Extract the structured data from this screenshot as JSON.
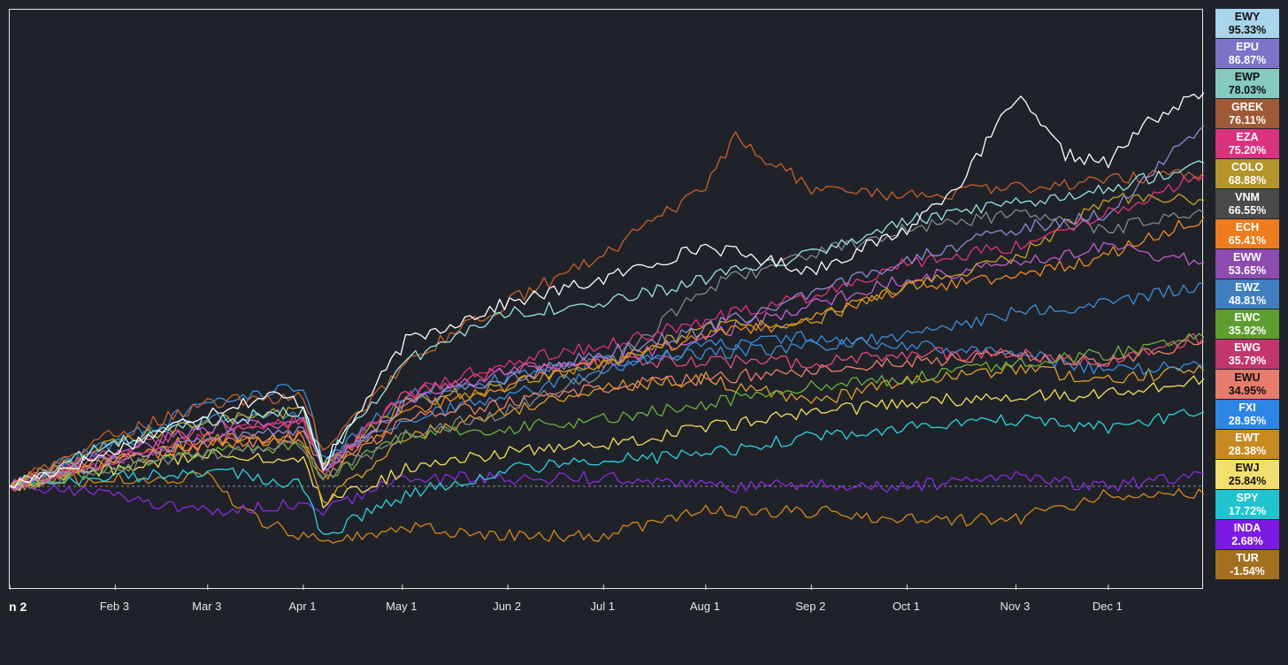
{
  "chart_data": {
    "type": "line",
    "title": "",
    "xlabel": "",
    "ylabel": "",
    "x_ticks": [
      "n 2",
      "Feb 3",
      "Mar 3",
      "Apr 1",
      "May 1",
      "Jun 2",
      "Jul 1",
      "Aug 1",
      "Sep 2",
      "Oct 1",
      "Nov 3",
      "Dec 1"
    ],
    "x_tick_days": [
      0,
      32,
      60,
      89,
      119,
      151,
      180,
      211,
      243,
      272,
      305,
      333
    ],
    "x_range_days": [
      0,
      362
    ],
    "ylim": [
      -25,
      115
    ],
    "grid": false,
    "legend_placement": "right",
    "series": [
      {
        "name": "EWY",
        "final": "95.33%",
        "color": "#ffffff",
        "box_color": "#a8d4ec",
        "label_color": "#111111",
        "points": [
          [
            0,
            0
          ],
          [
            30,
            8
          ],
          [
            60,
            18
          ],
          [
            80,
            22
          ],
          [
            89,
            20
          ],
          [
            95,
            5
          ],
          [
            120,
            35
          ],
          [
            150,
            44
          ],
          [
            180,
            50
          ],
          [
            211,
            58
          ],
          [
            243,
            52
          ],
          [
            272,
            62
          ],
          [
            290,
            75
          ],
          [
            305,
            94
          ],
          [
            320,
            80
          ],
          [
            333,
            78
          ],
          [
            345,
            88
          ],
          [
            362,
            95
          ]
        ]
      },
      {
        "name": "EPU",
        "final": "86.87%",
        "color": "#9389d6",
        "box_color": "#7b74c8",
        "label_color": "#ffffff",
        "points": [
          [
            0,
            0
          ],
          [
            30,
            6
          ],
          [
            60,
            12
          ],
          [
            89,
            14
          ],
          [
            95,
            4
          ],
          [
            120,
            20
          ],
          [
            150,
            26
          ],
          [
            180,
            32
          ],
          [
            211,
            38
          ],
          [
            243,
            46
          ],
          [
            272,
            55
          ],
          [
            305,
            62
          ],
          [
            333,
            66
          ],
          [
            362,
            87
          ]
        ]
      },
      {
        "name": "EWP",
        "final": "78.03%",
        "color": "#99e6e0",
        "box_color": "#86c9be",
        "label_color": "#111111",
        "points": [
          [
            0,
            0
          ],
          [
            30,
            10
          ],
          [
            60,
            16
          ],
          [
            89,
            18
          ],
          [
            95,
            6
          ],
          [
            120,
            30
          ],
          [
            150,
            42
          ],
          [
            180,
            44
          ],
          [
            211,
            50
          ],
          [
            243,
            56
          ],
          [
            272,
            64
          ],
          [
            305,
            68
          ],
          [
            333,
            72
          ],
          [
            362,
            78
          ]
        ]
      },
      {
        "name": "GREK",
        "final": "76.11%",
        "color": "#c9602b",
        "box_color": "#9e5a36",
        "label_color": "#ffffff",
        "points": [
          [
            0,
            0
          ],
          [
            30,
            12
          ],
          [
            60,
            20
          ],
          [
            89,
            22
          ],
          [
            95,
            8
          ],
          [
            120,
            30
          ],
          [
            150,
            44
          ],
          [
            180,
            56
          ],
          [
            211,
            72
          ],
          [
            220,
            84
          ],
          [
            243,
            72
          ],
          [
            272,
            70
          ],
          [
            305,
            72
          ],
          [
            333,
            74
          ],
          [
            362,
            76
          ]
        ]
      },
      {
        "name": "EZA",
        "final": "75.20%",
        "color": "#e0337f",
        "box_color": "#d93380",
        "label_color": "#ffffff",
        "points": [
          [
            0,
            0
          ],
          [
            30,
            6
          ],
          [
            60,
            12
          ],
          [
            89,
            16
          ],
          [
            95,
            4
          ],
          [
            120,
            22
          ],
          [
            150,
            30
          ],
          [
            180,
            34
          ],
          [
            211,
            40
          ],
          [
            243,
            46
          ],
          [
            272,
            54
          ],
          [
            305,
            58
          ],
          [
            333,
            66
          ],
          [
            362,
            75
          ]
        ]
      },
      {
        "name": "COLO",
        "final": "68.88%",
        "color": "#c9a227",
        "box_color": "#b5952a",
        "label_color": "#ffffff",
        "points": [
          [
            0,
            0
          ],
          [
            30,
            10
          ],
          [
            60,
            16
          ],
          [
            89,
            18
          ],
          [
            95,
            4
          ],
          [
            120,
            20
          ],
          [
            150,
            24
          ],
          [
            180,
            30
          ],
          [
            211,
            38
          ],
          [
            243,
            40
          ],
          [
            272,
            48
          ],
          [
            305,
            55
          ],
          [
            333,
            70
          ],
          [
            362,
            69
          ]
        ]
      },
      {
        "name": "VNM",
        "final": "66.55%",
        "color": "#888888",
        "box_color": "#4a4a4a",
        "label_color": "#ffffff",
        "points": [
          [
            0,
            0
          ],
          [
            30,
            4
          ],
          [
            60,
            8
          ],
          [
            89,
            10
          ],
          [
            95,
            2
          ],
          [
            120,
            12
          ],
          [
            150,
            18
          ],
          [
            180,
            28
          ],
          [
            211,
            48
          ],
          [
            243,
            56
          ],
          [
            272,
            62
          ],
          [
            305,
            66
          ],
          [
            333,
            62
          ],
          [
            362,
            66
          ]
        ]
      },
      {
        "name": "ECH",
        "final": "65.41%",
        "color": "#f08a24",
        "box_color": "#ee7c1e",
        "label_color": "#ffffff",
        "points": [
          [
            0,
            0
          ],
          [
            30,
            6
          ],
          [
            60,
            10
          ],
          [
            89,
            12
          ],
          [
            95,
            2
          ],
          [
            120,
            18
          ],
          [
            150,
            24
          ],
          [
            180,
            30
          ],
          [
            211,
            36
          ],
          [
            243,
            40
          ],
          [
            272,
            48
          ],
          [
            305,
            50
          ],
          [
            333,
            56
          ],
          [
            362,
            65
          ]
        ]
      },
      {
        "name": "EWW",
        "final": "53.65%",
        "color": "#c45fcf",
        "box_color": "#8e4bb0",
        "label_color": "#ffffff",
        "points": [
          [
            0,
            0
          ],
          [
            30,
            8
          ],
          [
            60,
            14
          ],
          [
            89,
            16
          ],
          [
            95,
            4
          ],
          [
            120,
            20
          ],
          [
            150,
            28
          ],
          [
            180,
            30
          ],
          [
            211,
            36
          ],
          [
            243,
            44
          ],
          [
            272,
            50
          ],
          [
            305,
            54
          ],
          [
            333,
            58
          ],
          [
            362,
            54
          ]
        ]
      },
      {
        "name": "EWZ",
        "final": "48.81%",
        "color": "#3f8fd6",
        "box_color": "#3f7fc0",
        "label_color": "#ffffff",
        "points": [
          [
            0,
            0
          ],
          [
            30,
            10
          ],
          [
            60,
            16
          ],
          [
            89,
            18
          ],
          [
            95,
            6
          ],
          [
            120,
            22
          ],
          [
            150,
            26
          ],
          [
            180,
            30
          ],
          [
            211,
            32
          ],
          [
            243,
            34
          ],
          [
            272,
            36
          ],
          [
            305,
            42
          ],
          [
            333,
            44
          ],
          [
            362,
            49
          ]
        ]
      },
      {
        "name": "EWC",
        "final": "35.92%",
        "color": "#6db33f",
        "box_color": "#5e9e31",
        "label_color": "#ffffff",
        "points": [
          [
            0,
            0
          ],
          [
            30,
            4
          ],
          [
            60,
            8
          ],
          [
            89,
            10
          ],
          [
            95,
            2
          ],
          [
            120,
            12
          ],
          [
            150,
            14
          ],
          [
            180,
            16
          ],
          [
            211,
            20
          ],
          [
            243,
            24
          ],
          [
            272,
            26
          ],
          [
            305,
            30
          ],
          [
            333,
            32
          ],
          [
            362,
            36
          ]
        ]
      },
      {
        "name": "EWG",
        "final": "35.79%",
        "color": "#e64d7a",
        "box_color": "#c2376a",
        "label_color": "#ffffff",
        "points": [
          [
            0,
            0
          ],
          [
            30,
            8
          ],
          [
            60,
            14
          ],
          [
            89,
            16
          ],
          [
            95,
            4
          ],
          [
            120,
            22
          ],
          [
            150,
            28
          ],
          [
            180,
            30
          ],
          [
            211,
            30
          ],
          [
            243,
            30
          ],
          [
            272,
            32
          ],
          [
            305,
            32
          ],
          [
            333,
            30
          ],
          [
            362,
            36
          ]
        ]
      },
      {
        "name": "EWU",
        "final": "34.95%",
        "color": "#f0826a",
        "box_color": "#e87c6c",
        "label_color": "#111111",
        "points": [
          [
            0,
            0
          ],
          [
            30,
            6
          ],
          [
            60,
            10
          ],
          [
            89,
            12
          ],
          [
            95,
            4
          ],
          [
            120,
            16
          ],
          [
            150,
            20
          ],
          [
            180,
            24
          ],
          [
            211,
            26
          ],
          [
            243,
            28
          ],
          [
            272,
            30
          ],
          [
            305,
            32
          ],
          [
            333,
            30
          ],
          [
            362,
            35
          ]
        ]
      },
      {
        "name": "FXI",
        "final": "28.95%",
        "color": "#3a8fe0",
        "box_color": "#2b86e5",
        "label_color": "#ffffff",
        "points": [
          [
            0,
            0
          ],
          [
            30,
            10
          ],
          [
            60,
            20
          ],
          [
            89,
            24
          ],
          [
            95,
            6
          ],
          [
            120,
            16
          ],
          [
            150,
            22
          ],
          [
            180,
            28
          ],
          [
            211,
            34
          ],
          [
            243,
            36
          ],
          [
            272,
            34
          ],
          [
            305,
            32
          ],
          [
            333,
            28
          ],
          [
            362,
            29
          ]
        ]
      },
      {
        "name": "EWT",
        "final": "28.38%",
        "color": "#e0a02a",
        "box_color": "#c88a20",
        "label_color": "#ffffff",
        "points": [
          [
            0,
            0
          ],
          [
            30,
            6
          ],
          [
            60,
            12
          ],
          [
            89,
            10
          ],
          [
            95,
            -4
          ],
          [
            120,
            12
          ],
          [
            150,
            18
          ],
          [
            180,
            24
          ],
          [
            211,
            26
          ],
          [
            243,
            20
          ],
          [
            272,
            26
          ],
          [
            305,
            28
          ],
          [
            333,
            26
          ],
          [
            362,
            28
          ]
        ]
      },
      {
        "name": "EWJ",
        "final": "25.84%",
        "color": "#f5e05a",
        "box_color": "#f2df6f",
        "label_color": "#111111",
        "points": [
          [
            0,
            0
          ],
          [
            30,
            4
          ],
          [
            60,
            8
          ],
          [
            89,
            6
          ],
          [
            95,
            -4
          ],
          [
            120,
            4
          ],
          [
            150,
            8
          ],
          [
            180,
            10
          ],
          [
            211,
            14
          ],
          [
            243,
            18
          ],
          [
            272,
            20
          ],
          [
            305,
            22
          ],
          [
            333,
            22
          ],
          [
            362,
            26
          ]
        ]
      },
      {
        "name": "SPY",
        "final": "17.72%",
        "color": "#2ed3e0",
        "box_color": "#1fc4cf",
        "label_color": "#ffffff",
        "points": [
          [
            0,
            0
          ],
          [
            30,
            2
          ],
          [
            60,
            4
          ],
          [
            89,
            0
          ],
          [
            95,
            -12
          ],
          [
            120,
            -2
          ],
          [
            150,
            4
          ],
          [
            180,
            6
          ],
          [
            211,
            8
          ],
          [
            243,
            12
          ],
          [
            272,
            14
          ],
          [
            305,
            16
          ],
          [
            333,
            14
          ],
          [
            362,
            18
          ]
        ]
      },
      {
        "name": "INDA",
        "final": "2.68%",
        "color": "#8a2be2",
        "box_color": "#7e1ae6",
        "label_color": "#ffffff",
        "points": [
          [
            0,
            0
          ],
          [
            30,
            -2
          ],
          [
            60,
            -6
          ],
          [
            89,
            -4
          ],
          [
            95,
            -6
          ],
          [
            120,
            2
          ],
          [
            150,
            2
          ],
          [
            180,
            2
          ],
          [
            211,
            0
          ],
          [
            243,
            0
          ],
          [
            272,
            0
          ],
          [
            305,
            2
          ],
          [
            333,
            0
          ],
          [
            362,
            3
          ]
        ]
      },
      {
        "name": "TUR",
        "final": "-1.54%",
        "color": "#d4881c",
        "box_color": "#a3701f",
        "label_color": "#ffffff",
        "points": [
          [
            0,
            0
          ],
          [
            30,
            2
          ],
          [
            60,
            2
          ],
          [
            75,
            -8
          ],
          [
            89,
            -12
          ],
          [
            95,
            -14
          ],
          [
            120,
            -10
          ],
          [
            150,
            -12
          ],
          [
            180,
            -12
          ],
          [
            211,
            -6
          ],
          [
            243,
            -6
          ],
          [
            272,
            -8
          ],
          [
            305,
            -8
          ],
          [
            333,
            -2
          ],
          [
            362,
            -2
          ]
        ]
      }
    ]
  }
}
